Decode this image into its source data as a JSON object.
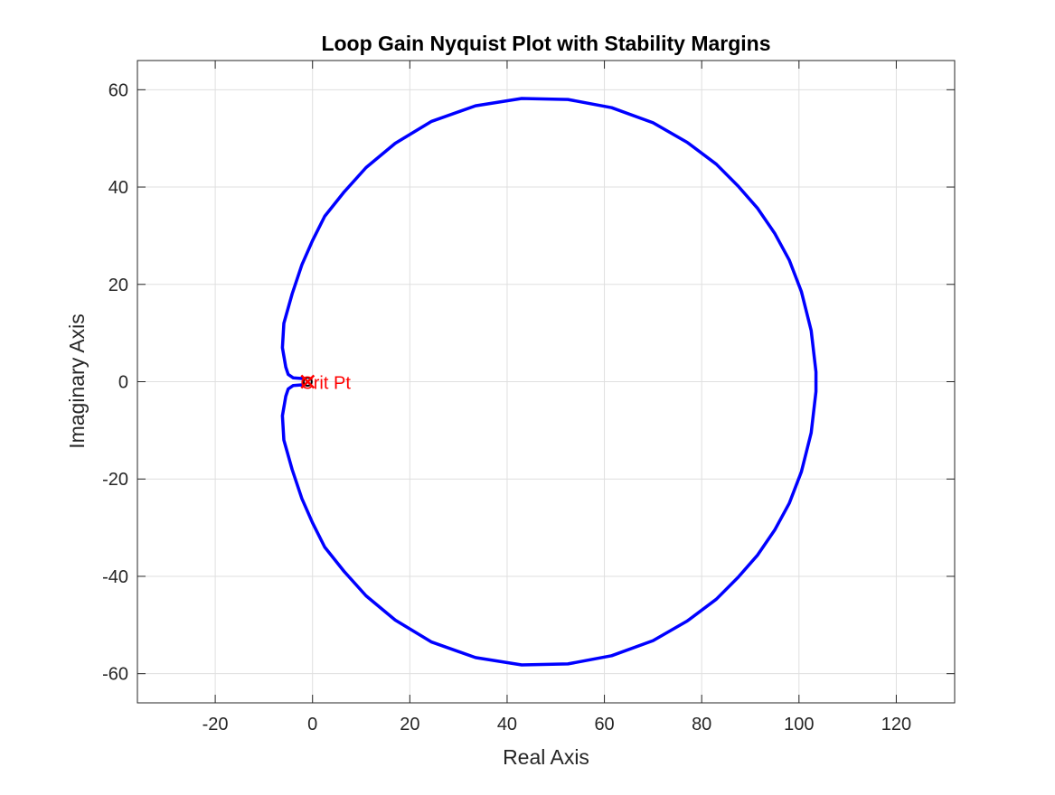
{
  "chart_data": {
    "type": "line",
    "title": "Loop Gain Nyquist Plot with Stability Margins",
    "xlabel": "Real Axis",
    "ylabel": "Imaginary Axis",
    "xlim": [
      -36,
      132
    ],
    "ylim": [
      -66,
      66
    ],
    "xticks": [
      -20,
      0,
      20,
      40,
      60,
      80,
      100,
      120
    ],
    "yticks": [
      -60,
      -40,
      -20,
      0,
      20,
      40,
      60
    ],
    "xtick_labels": [
      "-20",
      "0",
      "20",
      "40",
      "60",
      "80",
      "100",
      "120"
    ],
    "ytick_labels": [
      "-60",
      "-40",
      "-20",
      "0",
      "20",
      "40",
      "60"
    ],
    "grid": true,
    "box": true,
    "series": [
      {
        "color": "#0000ff",
        "x": [
          -1.5,
          -4.0,
          -5.0,
          -5.5,
          -6.2,
          -5.9,
          -4.2,
          -2.2,
          0.0,
          2.5,
          6.5,
          11.0,
          17.0,
          24.5,
          33.5,
          43.0,
          52.5,
          61.5,
          70.0,
          77.0,
          83.0,
          87.5,
          91.5,
          95.0,
          98.0,
          100.5,
          102.5,
          103.5,
          103.5,
          102.5,
          100.5,
          98.0,
          95.0,
          91.5,
          87.5,
          83.0,
          77.0,
          70.0,
          61.5,
          52.5,
          43.0,
          33.5,
          24.5,
          17.0,
          11.0,
          6.5,
          2.5,
          0.0,
          -2.2,
          -4.2,
          -5.9,
          -6.2,
          -5.5,
          -5.0,
          -4.0,
          -1.5
        ],
        "y": [
          0.6,
          0.8,
          1.5,
          3.0,
          7.0,
          12.0,
          18.0,
          24.0,
          29.0,
          34.0,
          39.0,
          44.0,
          49.0,
          53.5,
          56.7,
          58.2,
          58.0,
          56.3,
          53.2,
          49.2,
          44.7,
          40.2,
          35.6,
          30.5,
          25.0,
          18.5,
          10.5,
          2.0,
          -2.0,
          -10.5,
          -18.5,
          -25.0,
          -30.5,
          -35.6,
          -40.2,
          -44.7,
          -49.2,
          -53.2,
          -56.3,
          -58.0,
          -58.2,
          -56.7,
          -53.5,
          -49.0,
          -44.0,
          -39.0,
          -34.0,
          -29.0,
          -24.0,
          -18.0,
          -12.0,
          -7.0,
          -3.0,
          -1.5,
          -0.8,
          -0.6
        ]
      }
    ],
    "critical_point": {
      "x": -1,
      "y": 0,
      "color": "#ff0000",
      "label": "Crit Pt"
    }
  }
}
